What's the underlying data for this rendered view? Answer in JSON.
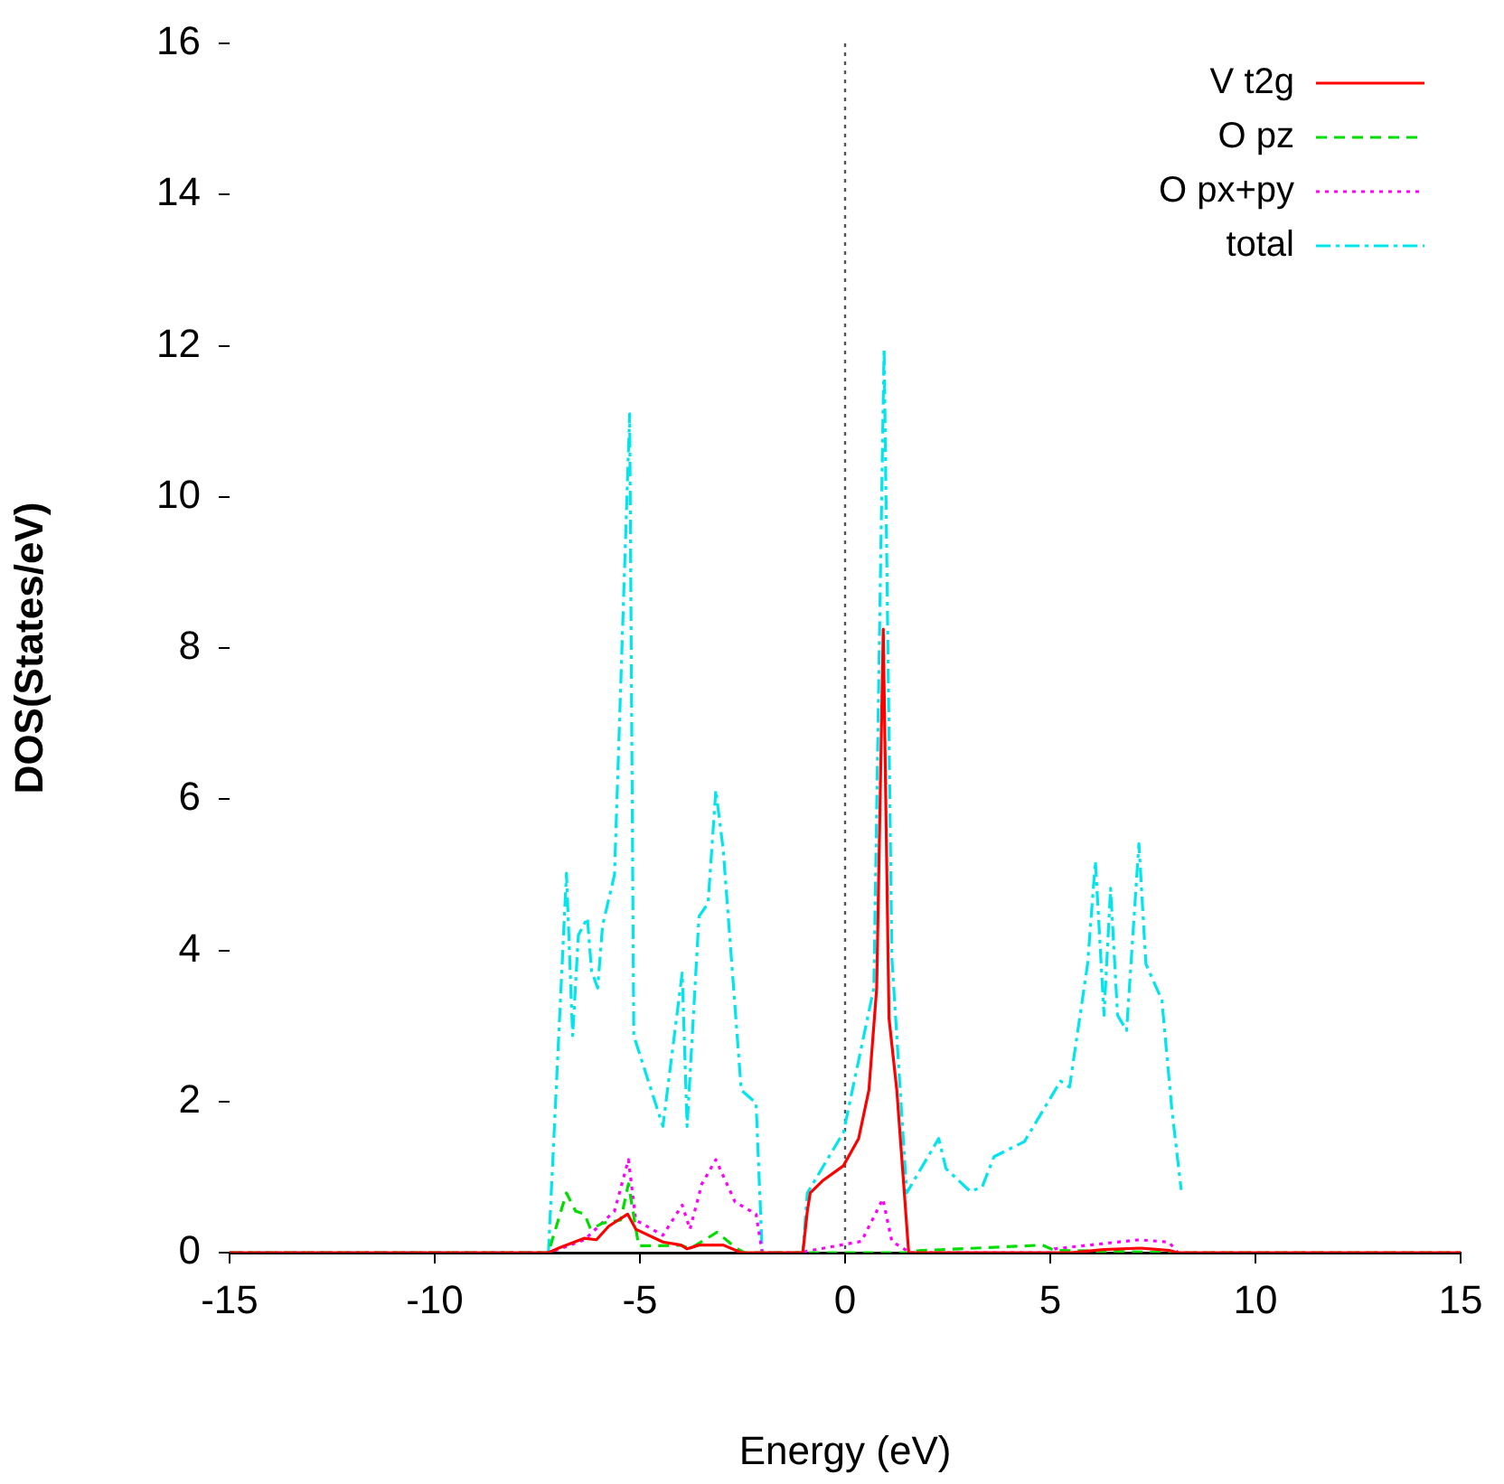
{
  "chart_data": {
    "type": "line",
    "xlabel": "Energy (eV)",
    "ylabel": "DOS(States/eV)",
    "xlim": [
      -15,
      15
    ],
    "ylim": [
      0,
      16
    ],
    "xticks": [
      -15,
      -10,
      -5,
      0,
      5,
      10,
      15
    ],
    "yticks": [
      0,
      2,
      4,
      6,
      8,
      10,
      12,
      14,
      16
    ],
    "grid": false,
    "legend": "top right",
    "marker": "none",
    "ref_lines": [
      {
        "axis": "x",
        "value": 0,
        "color": "#555555",
        "line_style": "dotted"
      }
    ],
    "series": [
      {
        "name": "V t2g",
        "color": "#ff0000",
        "line_style": "solid",
        "x": [
          -15,
          -7.23,
          -6.94,
          -6.35,
          -6.06,
          -5.76,
          -5.3,
          -5.1,
          -4.44,
          -4.0,
          -3.85,
          -3.56,
          -2.97,
          -2.53,
          -1.03,
          -0.92,
          -0.85,
          -0.55,
          -0.04,
          0.33,
          0.58,
          0.77,
          0.93,
          1.07,
          1.26,
          1.55,
          5.5,
          6.3,
          7.2,
          7.9,
          8.1,
          15
        ],
        "values": [
          0,
          0,
          0.07,
          0.19,
          0.17,
          0.35,
          0.51,
          0.31,
          0.14,
          0.1,
          0.05,
          0.1,
          0.1,
          0,
          0,
          0.55,
          0.79,
          0.95,
          1.15,
          1.51,
          2.15,
          3.5,
          8.25,
          3.1,
          2.15,
          0,
          0,
          0.04,
          0.06,
          0.03,
          0,
          0
        ]
      },
      {
        "name": "O pz",
        "color": "#00dd00",
        "line_style": "dashed",
        "x": [
          -15,
          -7.23,
          -6.79,
          -6.57,
          -6.35,
          -6.2,
          -5.91,
          -5.47,
          -5.28,
          -5.03,
          -4.59,
          -4.0,
          -3.78,
          -3.12,
          -2.68,
          -2.46,
          1.55,
          1.58,
          4.81,
          5.1,
          8.1,
          15
        ],
        "values": [
          0,
          0,
          0.79,
          0.55,
          0.51,
          0.31,
          0.39,
          0.43,
          0.91,
          0.09,
          0.09,
          0.1,
          0.05,
          0.27,
          0.07,
          0,
          0,
          0.02,
          0.1,
          0.03,
          0,
          0
        ]
      },
      {
        "name": "O px+py",
        "color": "#ff00ff",
        "line_style": "dotted",
        "x": [
          -15,
          -7.23,
          -6.94,
          -6.35,
          -5.62,
          -5.28,
          -5.1,
          -4.44,
          -3.97,
          -3.78,
          -3.49,
          -3.15,
          -2.68,
          -2.17,
          -2.02,
          -1.03,
          -0.92,
          0.4,
          0.92,
          1.14,
          1.58,
          5.0,
          5.1,
          7.16,
          7.89,
          8.11,
          15
        ],
        "values": [
          0,
          0,
          0.05,
          0.17,
          0.55,
          1.23,
          0.43,
          0.23,
          0.63,
          0.31,
          0.91,
          1.23,
          0.67,
          0.51,
          0,
          0,
          0.02,
          0.15,
          0.71,
          0.15,
          0,
          0,
          0.05,
          0.17,
          0.14,
          0,
          0
        ]
      },
      {
        "name": "total",
        "color": "#00e5ee",
        "line_style": "dashdot",
        "x": [
          -15,
          -7.23,
          -6.79,
          -6.64,
          -6.5,
          -6.28,
          -6.18,
          -6.03,
          -5.91,
          -5.62,
          -5.25,
          -5.15,
          -4.44,
          -3.97,
          -3.85,
          -3.56,
          -3.34,
          -3.15,
          -2.97,
          -2.53,
          -2.17,
          -2.02,
          -1.03,
          -0.92,
          -0.04,
          0.7,
          0.95,
          1.14,
          1.5,
          2.28,
          2.46,
          3.05,
          3.34,
          3.63,
          4.37,
          5.25,
          5.47,
          5.91,
          6.1,
          6.31,
          6.47,
          6.64,
          6.86,
          7.16,
          7.33,
          7.72,
          7.96,
          8.19
        ],
        "values": [
          0,
          0,
          5.02,
          2.87,
          4.2,
          4.43,
          3.73,
          3.5,
          4.33,
          5.0,
          11.1,
          2.87,
          1.67,
          3.7,
          1.67,
          4.45,
          4.62,
          6.12,
          5.33,
          2.15,
          1.98,
          0,
          0,
          0.79,
          1.59,
          3.5,
          11.96,
          3.9,
          0.79,
          1.51,
          1.11,
          0.81,
          0.87,
          1.27,
          1.47,
          2.27,
          2.19,
          3.82,
          5.18,
          3.14,
          4.82,
          3.14,
          2.94,
          5.41,
          3.82,
          3.34,
          1.91,
          0.83
        ]
      }
    ]
  }
}
